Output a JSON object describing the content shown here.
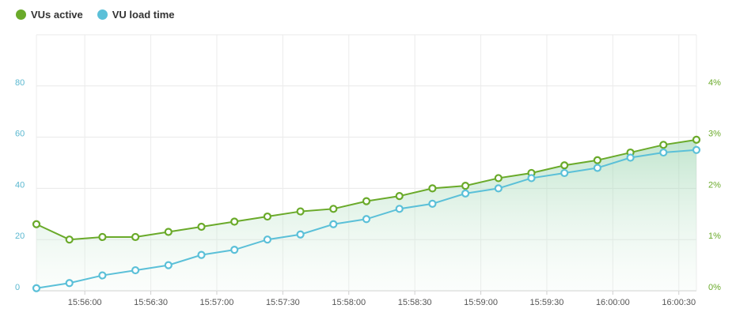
{
  "legend": {
    "items": [
      {
        "label": "VUs active",
        "color": "#6aaa2a"
      },
      {
        "label": "VU load time",
        "color": "#5bc0d8"
      }
    ]
  },
  "chart_data": {
    "type": "line",
    "title": "",
    "grid": true,
    "legend_placement": "top-left",
    "x_ticks": [
      "15:56:00",
      "15:56:30",
      "15:57:00",
      "15:57:30",
      "15:58:00",
      "15:58:30",
      "15:59:00",
      "15:59:30",
      "16:00:00",
      "16:00:30"
    ],
    "x_range": [
      "15:55:38",
      "16:00:38"
    ],
    "y_left": {
      "ticks": [
        "0",
        "20",
        "40",
        "60",
        "80"
      ],
      "range": [
        0,
        100
      ],
      "color": "#5bb8d0"
    },
    "y_right": {
      "ticks": [
        "0%",
        "1%",
        "2%",
        "3%",
        "4%"
      ],
      "range": [
        0,
        5
      ],
      "color": "#6aaa2a"
    },
    "series": [
      {
        "name": "VUs active",
        "color": "#6aaa2a",
        "axis": "left",
        "area": true,
        "x": [
          "15:55:38",
          "15:55:53",
          "15:56:08",
          "15:56:23",
          "15:56:38",
          "15:56:53",
          "15:57:08",
          "15:57:23",
          "15:57:38",
          "15:57:53",
          "15:58:08",
          "15:58:23",
          "15:58:38",
          "15:58:53",
          "15:59:08",
          "15:59:23",
          "15:59:38",
          "15:59:53",
          "16:00:08",
          "16:00:23",
          "16:00:38"
        ],
        "values": [
          26,
          20,
          21,
          21,
          23,
          25,
          27,
          29,
          31,
          32,
          35,
          37,
          40,
          41,
          44,
          46,
          49,
          51,
          54,
          57,
          59
        ]
      },
      {
        "name": "VU load time",
        "color": "#5bc0d8",
        "axis": "left",
        "area": false,
        "x": [
          "15:55:38",
          "15:55:53",
          "15:56:08",
          "15:56:23",
          "15:56:38",
          "15:56:53",
          "15:57:08",
          "15:57:23",
          "15:57:38",
          "15:57:53",
          "15:58:08",
          "15:58:23",
          "15:58:38",
          "15:58:53",
          "15:59:08",
          "15:59:23",
          "15:59:38",
          "15:59:53",
          "16:00:08",
          "16:00:23",
          "16:00:38"
        ],
        "values": [
          1,
          3,
          6,
          8,
          10,
          14,
          16,
          20,
          22,
          26,
          28,
          32,
          34,
          38,
          40,
          44,
          46,
          48,
          52,
          54,
          55
        ]
      }
    ]
  }
}
